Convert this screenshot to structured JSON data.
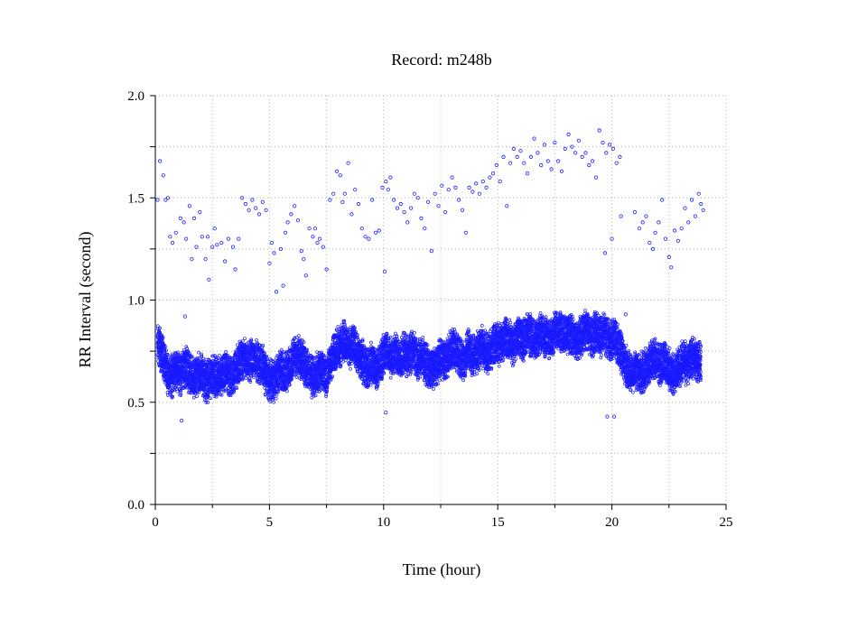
{
  "chart_data": {
    "type": "scatter",
    "title": "Record:  m248b",
    "xlabel": "Time (hour)",
    "ylabel": "RR Interval (second)",
    "xlim": [
      0,
      25
    ],
    "ylim": [
      0,
      2.0
    ],
    "x_ticks": [
      "0",
      "5",
      "10",
      "15",
      "20",
      "25"
    ],
    "y_ticks": [
      "0.0",
      "0.5",
      "1.0",
      "1.5",
      "2.0"
    ],
    "grid": true,
    "marker": "open-circle",
    "color": "#1a1aff",
    "series": [
      {
        "band": [
          [
            0.1,
            0.78
          ],
          [
            0.3,
            0.74
          ],
          [
            0.5,
            0.65
          ],
          [
            0.7,
            0.62
          ],
          [
            0.9,
            0.66
          ],
          [
            1.1,
            0.63
          ],
          [
            1.3,
            0.68
          ],
          [
            1.5,
            0.65
          ],
          [
            1.7,
            0.62
          ],
          [
            1.9,
            0.64
          ],
          [
            2.1,
            0.62
          ],
          [
            2.3,
            0.6
          ],
          [
            2.5,
            0.64
          ],
          [
            2.7,
            0.61
          ],
          [
            2.9,
            0.63
          ],
          [
            3.1,
            0.65
          ],
          [
            3.3,
            0.62
          ],
          [
            3.5,
            0.66
          ],
          [
            3.7,
            0.7
          ],
          [
            3.9,
            0.72
          ],
          [
            4.1,
            0.7
          ],
          [
            4.3,
            0.72
          ],
          [
            4.5,
            0.7
          ],
          [
            4.7,
            0.68
          ],
          [
            4.9,
            0.62
          ],
          [
            5.1,
            0.6
          ],
          [
            5.3,
            0.62
          ],
          [
            5.5,
            0.66
          ],
          [
            5.7,
            0.64
          ],
          [
            5.9,
            0.68
          ],
          [
            6.1,
            0.72
          ],
          [
            6.3,
            0.72
          ],
          [
            6.5,
            0.7
          ],
          [
            6.7,
            0.65
          ],
          [
            6.9,
            0.62
          ],
          [
            7.1,
            0.64
          ],
          [
            7.3,
            0.66
          ],
          [
            7.5,
            0.62
          ],
          [
            7.7,
            0.7
          ],
          [
            7.9,
            0.76
          ],
          [
            8.1,
            0.78
          ],
          [
            8.3,
            0.8
          ],
          [
            8.5,
            0.76
          ],
          [
            8.7,
            0.78
          ],
          [
            8.9,
            0.72
          ],
          [
            9.1,
            0.7
          ],
          [
            9.3,
            0.66
          ],
          [
            9.5,
            0.7
          ],
          [
            9.7,
            0.66
          ],
          [
            9.9,
            0.7
          ],
          [
            10.1,
            0.76
          ],
          [
            10.3,
            0.72
          ],
          [
            10.5,
            0.75
          ],
          [
            10.7,
            0.7
          ],
          [
            10.9,
            0.74
          ],
          [
            11.1,
            0.72
          ],
          [
            11.3,
            0.76
          ],
          [
            11.5,
            0.7
          ],
          [
            11.7,
            0.72
          ],
          [
            11.9,
            0.68
          ],
          [
            12.1,
            0.66
          ],
          [
            12.3,
            0.68
          ],
          [
            12.5,
            0.72
          ],
          [
            12.7,
            0.7
          ],
          [
            12.9,
            0.74
          ],
          [
            13.1,
            0.76
          ],
          [
            13.3,
            0.74
          ],
          [
            13.5,
            0.7
          ],
          [
            13.7,
            0.76
          ],
          [
            13.9,
            0.72
          ],
          [
            14.1,
            0.74
          ],
          [
            14.3,
            0.78
          ],
          [
            14.5,
            0.74
          ],
          [
            14.7,
            0.76
          ],
          [
            14.9,
            0.8
          ],
          [
            15.1,
            0.78
          ],
          [
            15.3,
            0.82
          ],
          [
            15.5,
            0.8
          ],
          [
            15.7,
            0.78
          ],
          [
            15.9,
            0.82
          ],
          [
            16.1,
            0.8
          ],
          [
            16.3,
            0.84
          ],
          [
            16.5,
            0.82
          ],
          [
            16.7,
            0.8
          ],
          [
            16.9,
            0.84
          ],
          [
            17.1,
            0.82
          ],
          [
            17.3,
            0.8
          ],
          [
            17.5,
            0.84
          ],
          [
            17.7,
            0.86
          ],
          [
            17.9,
            0.82
          ],
          [
            18.1,
            0.84
          ],
          [
            18.3,
            0.82
          ],
          [
            18.5,
            0.8
          ],
          [
            18.7,
            0.84
          ],
          [
            18.9,
            0.86
          ],
          [
            19.1,
            0.82
          ],
          [
            19.3,
            0.84
          ],
          [
            19.5,
            0.82
          ],
          [
            19.7,
            0.84
          ],
          [
            19.9,
            0.8
          ],
          [
            20.1,
            0.82
          ],
          [
            20.3,
            0.78
          ],
          [
            20.5,
            0.7
          ],
          [
            20.7,
            0.66
          ],
          [
            20.9,
            0.64
          ],
          [
            21.1,
            0.66
          ],
          [
            21.3,
            0.64
          ],
          [
            21.5,
            0.66
          ],
          [
            21.7,
            0.7
          ],
          [
            21.9,
            0.72
          ],
          [
            22.1,
            0.68
          ],
          [
            22.3,
            0.7
          ],
          [
            22.5,
            0.66
          ],
          [
            22.7,
            0.64
          ],
          [
            22.9,
            0.66
          ],
          [
            23.1,
            0.7
          ],
          [
            23.3,
            0.68
          ],
          [
            23.5,
            0.72
          ],
          [
            23.7,
            0.7
          ],
          [
            23.9,
            0.7
          ]
        ],
        "outliers": [
          [
            0.1,
            1.49
          ],
          [
            0.2,
            1.68
          ],
          [
            0.35,
            1.61
          ],
          [
            0.45,
            1.49
          ],
          [
            0.55,
            1.5
          ],
          [
            0.65,
            1.31
          ],
          [
            0.75,
            1.28
          ],
          [
            0.9,
            1.33
          ],
          [
            1.1,
            1.4
          ],
          [
            1.25,
            1.38
          ],
          [
            1.3,
            0.92
          ],
          [
            1.35,
            1.3
          ],
          [
            1.5,
            1.46
          ],
          [
            1.6,
            1.2
          ],
          [
            1.7,
            1.4
          ],
          [
            1.8,
            1.26
          ],
          [
            1.95,
            1.43
          ],
          [
            2.05,
            1.31
          ],
          [
            2.2,
            1.2
          ],
          [
            2.3,
            1.31
          ],
          [
            2.35,
            1.1
          ],
          [
            2.5,
            1.26
          ],
          [
            2.6,
            1.35
          ],
          [
            2.7,
            1.27
          ],
          [
            2.9,
            1.28
          ],
          [
            3.05,
            1.19
          ],
          [
            3.2,
            1.3
          ],
          [
            3.4,
            1.26
          ],
          [
            3.5,
            1.15
          ],
          [
            3.65,
            1.3
          ],
          [
            3.8,
            1.5
          ],
          [
            3.95,
            1.47
          ],
          [
            4.1,
            1.44
          ],
          [
            4.25,
            1.49
          ],
          [
            4.4,
            1.45
          ],
          [
            4.55,
            1.42
          ],
          [
            4.7,
            1.48
          ],
          [
            4.85,
            1.44
          ],
          [
            5.0,
            1.18
          ],
          [
            5.1,
            1.28
          ],
          [
            5.2,
            1.23
          ],
          [
            5.3,
            1.04
          ],
          [
            5.5,
            1.25
          ],
          [
            5.6,
            1.07
          ],
          [
            5.7,
            1.33
          ],
          [
            5.8,
            1.38
          ],
          [
            5.95,
            1.42
          ],
          [
            6.1,
            1.46
          ],
          [
            6.25,
            1.39
          ],
          [
            6.4,
            1.24
          ],
          [
            6.5,
            1.2
          ],
          [
            6.6,
            1.12
          ],
          [
            6.75,
            1.35
          ],
          [
            6.9,
            1.31
          ],
          [
            7.0,
            1.35
          ],
          [
            7.1,
            1.28
          ],
          [
            7.2,
            1.3
          ],
          [
            7.35,
            1.26
          ],
          [
            7.5,
            1.15
          ],
          [
            7.65,
            1.49
          ],
          [
            7.8,
            1.52
          ],
          [
            7.95,
            1.63
          ],
          [
            8.1,
            1.61
          ],
          [
            8.2,
            1.48
          ],
          [
            8.3,
            1.52
          ],
          [
            8.45,
            1.67
          ],
          [
            8.6,
            1.42
          ],
          [
            8.75,
            1.54
          ],
          [
            8.9,
            1.47
          ],
          [
            9.05,
            1.35
          ],
          [
            9.2,
            1.31
          ],
          [
            9.35,
            1.3
          ],
          [
            9.5,
            1.49
          ],
          [
            9.65,
            1.33
          ],
          [
            9.8,
            1.34
          ],
          [
            9.95,
            1.55
          ],
          [
            10.05,
            1.14
          ],
          [
            10.1,
            1.58
          ],
          [
            10.2,
            1.54
          ],
          [
            10.3,
            1.6
          ],
          [
            10.45,
            1.49
          ],
          [
            10.6,
            1.45
          ],
          [
            10.75,
            1.47
          ],
          [
            10.9,
            1.43
          ],
          [
            11.05,
            1.38
          ],
          [
            11.2,
            1.45
          ],
          [
            11.35,
            1.52
          ],
          [
            11.5,
            1.5
          ],
          [
            11.65,
            1.4
          ],
          [
            11.8,
            1.35
          ],
          [
            11.95,
            1.48
          ],
          [
            12.1,
            1.24
          ],
          [
            12.25,
            1.52
          ],
          [
            12.4,
            1.46
          ],
          [
            12.55,
            1.56
          ],
          [
            12.7,
            1.43
          ],
          [
            12.85,
            1.54
          ],
          [
            13.0,
            1.6
          ],
          [
            13.15,
            1.55
          ],
          [
            13.3,
            1.49
          ],
          [
            13.45,
            1.44
          ],
          [
            13.6,
            1.33
          ],
          [
            13.75,
            1.55
          ],
          [
            13.9,
            1.53
          ],
          [
            14.05,
            1.57
          ],
          [
            14.2,
            1.52
          ],
          [
            14.35,
            1.58
          ],
          [
            14.5,
            1.55
          ],
          [
            14.65,
            1.6
          ],
          [
            14.8,
            1.62
          ],
          [
            14.95,
            1.66
          ],
          [
            15.1,
            1.58
          ],
          [
            15.25,
            1.7
          ],
          [
            15.4,
            1.46
          ],
          [
            15.55,
            1.67
          ],
          [
            15.7,
            1.74
          ],
          [
            15.85,
            1.7
          ],
          [
            16.0,
            1.73
          ],
          [
            16.15,
            1.67
          ],
          [
            16.3,
            1.62
          ],
          [
            16.45,
            1.7
          ],
          [
            16.6,
            1.79
          ],
          [
            16.75,
            1.72
          ],
          [
            16.9,
            1.66
          ],
          [
            17.05,
            1.76
          ],
          [
            17.2,
            1.68
          ],
          [
            17.35,
            1.64
          ],
          [
            17.5,
            1.77
          ],
          [
            17.65,
            1.68
          ],
          [
            17.8,
            1.63
          ],
          [
            17.95,
            1.74
          ],
          [
            18.1,
            1.81
          ],
          [
            18.25,
            1.75
          ],
          [
            18.4,
            1.72
          ],
          [
            18.55,
            1.78
          ],
          [
            18.7,
            1.7
          ],
          [
            18.85,
            1.72
          ],
          [
            19.0,
            1.66
          ],
          [
            19.15,
            1.68
          ],
          [
            19.3,
            1.6
          ],
          [
            19.45,
            1.83
          ],
          [
            19.6,
            1.77
          ],
          [
            19.75,
            1.72
          ],
          [
            19.9,
            1.76
          ],
          [
            20.05,
            1.74
          ],
          [
            20.2,
            1.67
          ],
          [
            20.35,
            1.7
          ],
          [
            19.7,
            1.23
          ],
          [
            20.0,
            1.3
          ],
          [
            20.4,
            1.41
          ],
          [
            20.6,
            0.93
          ],
          [
            19.8,
            0.43
          ],
          [
            20.1,
            0.43
          ],
          [
            10.1,
            0.45
          ],
          [
            1.15,
            0.41
          ],
          [
            21.0,
            1.43
          ],
          [
            21.2,
            1.35
          ],
          [
            21.35,
            1.38
          ],
          [
            21.5,
            1.41
          ],
          [
            21.65,
            1.28
          ],
          [
            21.8,
            1.25
          ],
          [
            21.9,
            1.33
          ],
          [
            22.05,
            1.38
          ],
          [
            22.2,
            1.49
          ],
          [
            22.35,
            1.3
          ],
          [
            22.5,
            1.21
          ],
          [
            22.6,
            1.16
          ],
          [
            22.75,
            1.34
          ],
          [
            22.9,
            1.29
          ],
          [
            23.05,
            1.35
          ],
          [
            23.2,
            1.45
          ],
          [
            23.35,
            1.38
          ],
          [
            23.5,
            1.49
          ],
          [
            23.65,
            1.41
          ],
          [
            23.8,
            1.52
          ],
          [
            23.9,
            1.47
          ],
          [
            24.0,
            1.44
          ]
        ]
      }
    ]
  }
}
